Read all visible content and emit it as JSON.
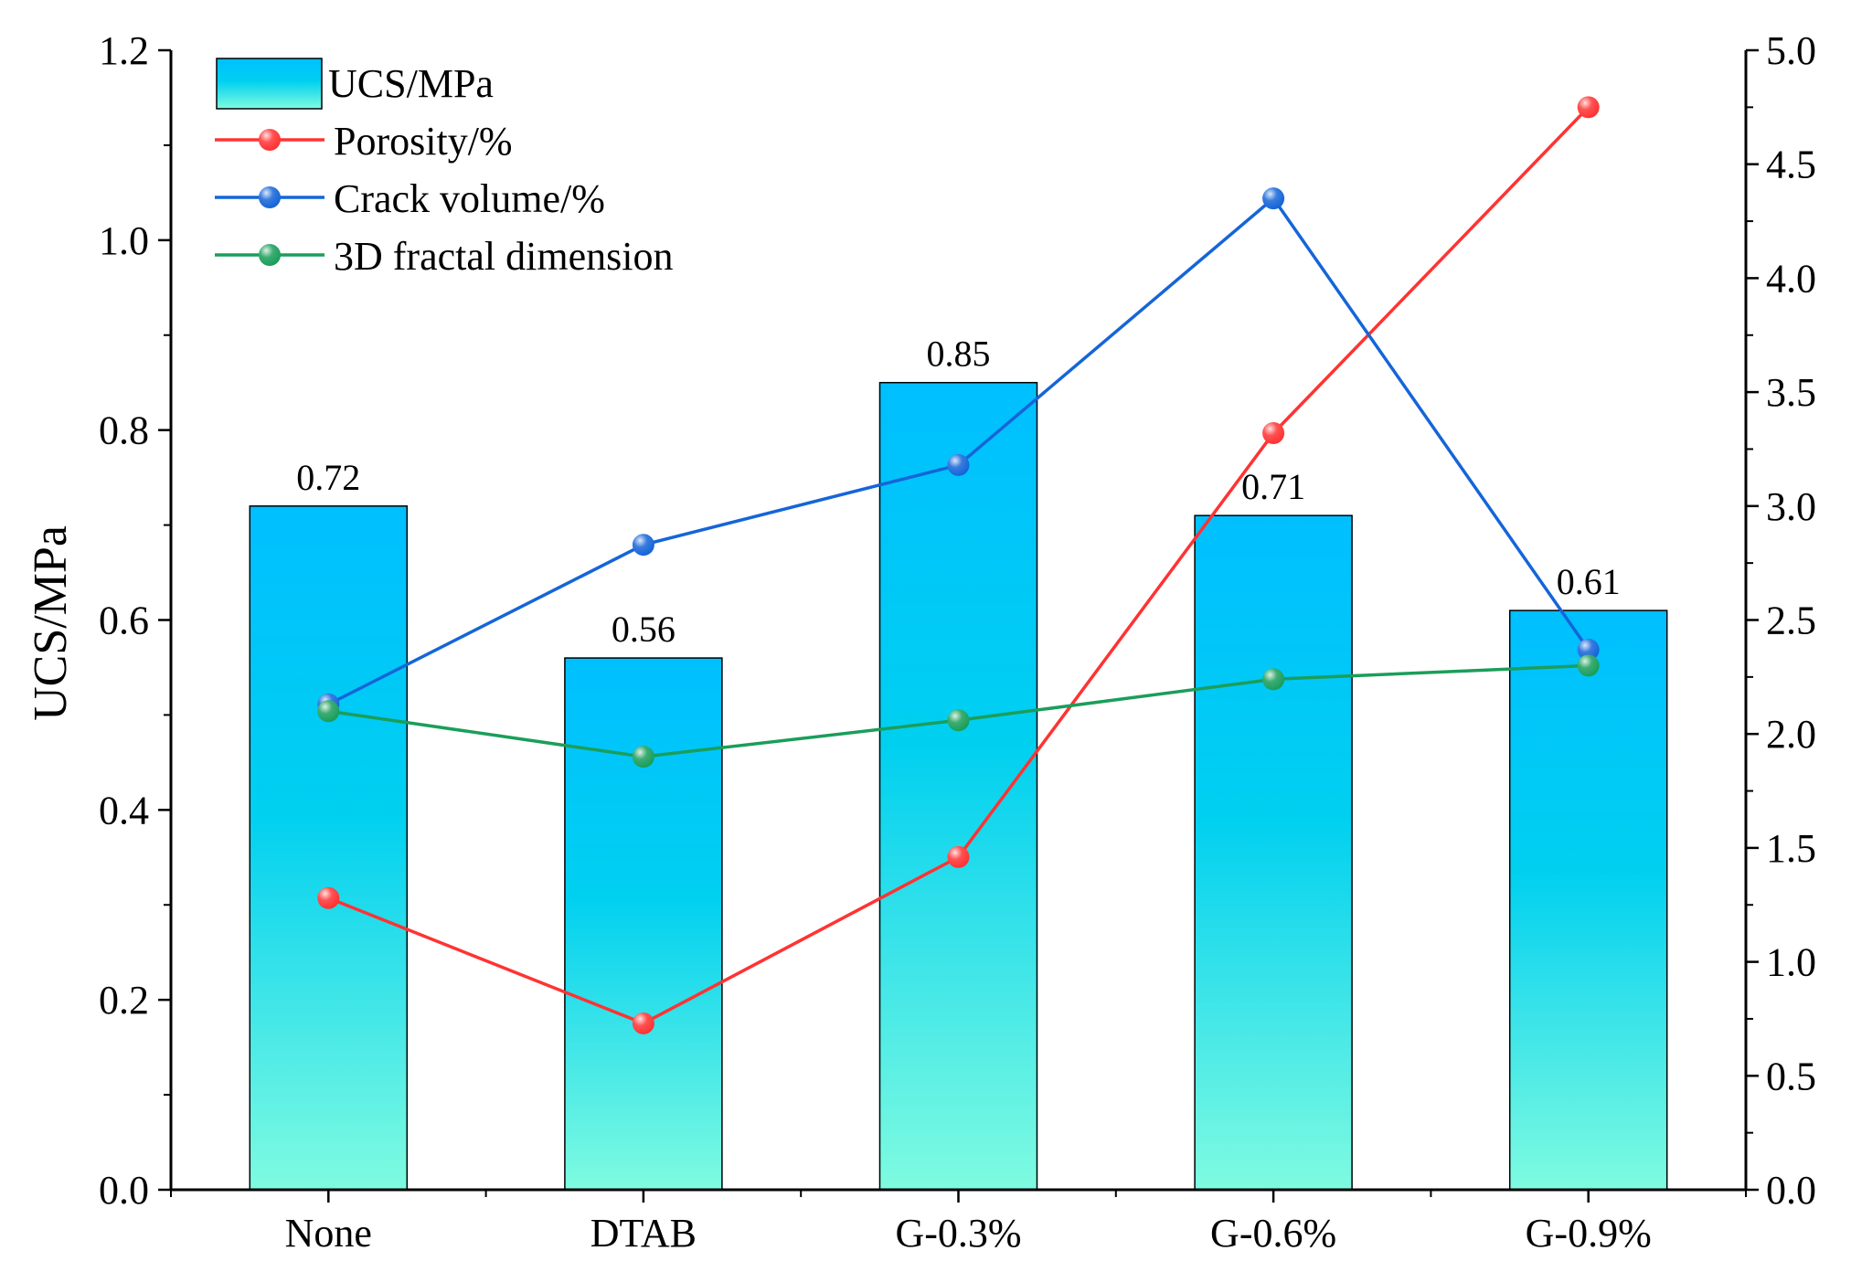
{
  "chart_data": {
    "type": "bar+line",
    "categories": [
      "None",
      "DTAB",
      "G-0.3%",
      "G-0.6%",
      "G-0.9%"
    ],
    "bar_series": {
      "name": "UCS/MPa",
      "values": [
        0.72,
        0.56,
        0.85,
        0.71,
        0.61
      ],
      "labels": [
        "0.72",
        "0.56",
        "0.85",
        "0.71",
        "0.61"
      ],
      "axis": "left",
      "color_top": "#00bfff",
      "color_mid": "#00d0f0",
      "color_bottom": "#7ffbe0"
    },
    "line_series": [
      {
        "name": "Porosity/%",
        "values": [
          1.28,
          0.73,
          1.46,
          3.32,
          4.75
        ],
        "axis": "right",
        "color": "#ff3333"
      },
      {
        "name": "Crack volume/%",
        "values": [
          2.13,
          2.83,
          3.18,
          4.35,
          2.37
        ],
        "axis": "right",
        "color": "#1565d8"
      },
      {
        "name": "3D fractal dimension",
        "values": [
          2.1,
          1.9,
          2.06,
          2.24,
          2.3
        ],
        "axis": "right",
        "color": "#1a9e5a"
      }
    ],
    "left_axis": {
      "label": "UCS/MPa",
      "min": 0,
      "max": 1.2,
      "ticks": [
        "0.0",
        "0.2",
        "0.4",
        "0.6",
        "0.8",
        "1.0",
        "1.2"
      ]
    },
    "right_axis": {
      "label": "",
      "min": 0,
      "max": 5.0,
      "ticks": [
        "0.0",
        "0.5",
        "1.0",
        "1.5",
        "2.0",
        "2.5",
        "3.0",
        "3.5",
        "4.0",
        "4.5",
        "5.0"
      ]
    },
    "legend": {
      "position": "top-left",
      "entries": [
        "UCS/MPa",
        "Porosity/%",
        "Crack volume/%",
        "3D fractal dimension"
      ]
    }
  }
}
